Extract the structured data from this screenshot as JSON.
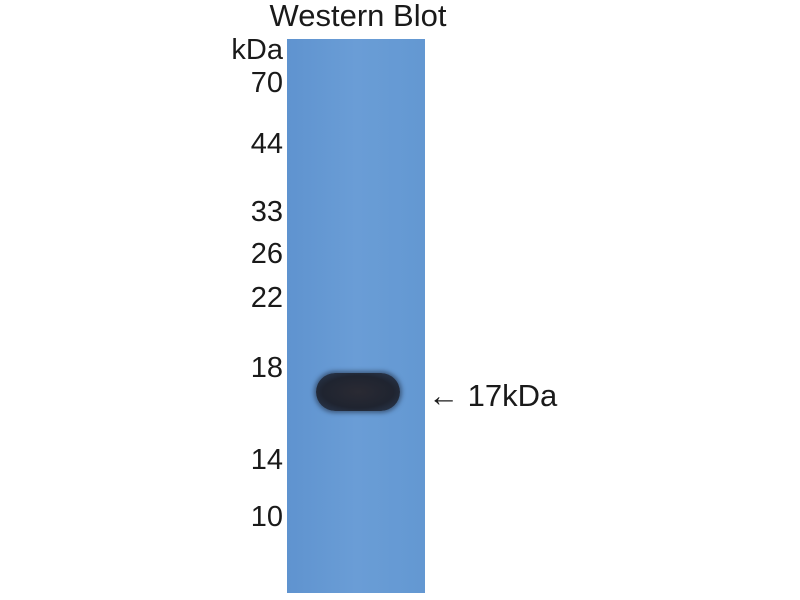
{
  "title": "Western Blot",
  "unit_label": "kDa",
  "markers": [
    "70",
    "44",
    "33",
    "26",
    "22",
    "18",
    "14",
    "10"
  ],
  "band_annotation": "← 17kDa",
  "colors": {
    "membrane": "#6a9dd6",
    "band": "#1f2430",
    "text": "#1a1a1a"
  }
}
